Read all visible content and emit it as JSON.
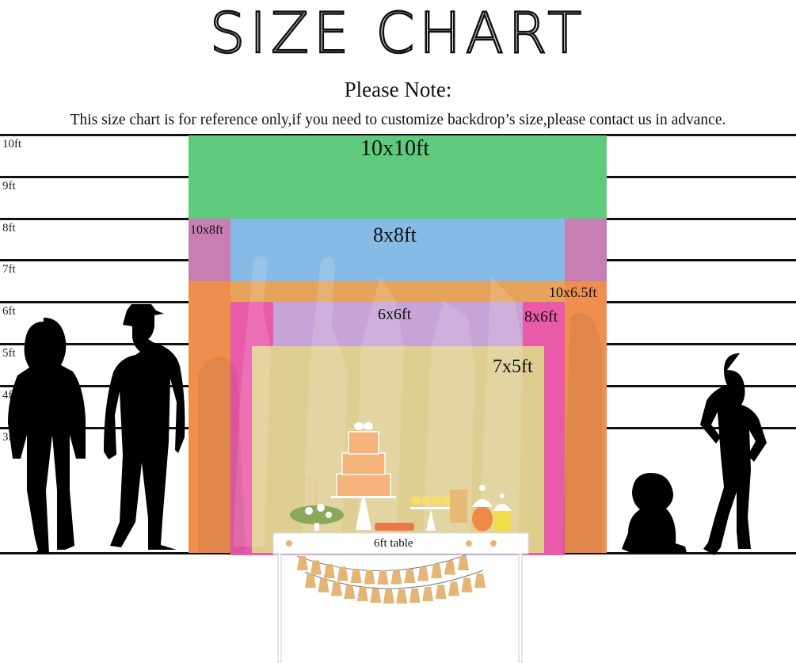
{
  "title": "SIZE CHART",
  "note": {
    "heading": "Please Note:",
    "body": "This size chart is for reference only,if you need to customize backdrop’s size,please contact us in advance."
  },
  "height_scale": [
    {
      "label": "10ft",
      "feet": 10
    },
    {
      "label": "9ft",
      "feet": 9
    },
    {
      "label": "8ft",
      "feet": 8
    },
    {
      "label": "7ft",
      "feet": 7
    },
    {
      "label": "6ft",
      "feet": 6
    },
    {
      "label": "5ft",
      "feet": 5
    },
    {
      "label": "4ft",
      "feet": 4
    },
    {
      "label": "3ft",
      "feet": 3
    }
  ],
  "backdrops": [
    {
      "label": "10x10ft",
      "width_ft": 10,
      "height_ft": 10,
      "color": "#5fc97e"
    },
    {
      "label": "10x8ft",
      "width_ft": 10,
      "height_ft": 8,
      "color": "#c77fb3"
    },
    {
      "label": "8x8ft",
      "width_ft": 8,
      "height_ft": 8,
      "color": "#86bbe6"
    },
    {
      "label": "10x6.5ft",
      "width_ft": 10,
      "height_ft": 6.5,
      "color": "#ee8f4f"
    },
    {
      "label": "8x6ft",
      "width_ft": 8,
      "height_ft": 6,
      "color": "#e95aa8"
    },
    {
      "label": "6x6ft",
      "width_ft": 6,
      "height_ft": 6,
      "color": "#c7a3d8"
    },
    {
      "label": "7x5ft",
      "width_ft": 7,
      "height_ft": 5,
      "color": "#e0cf8f"
    }
  ],
  "table": {
    "label": "6ft table"
  }
}
